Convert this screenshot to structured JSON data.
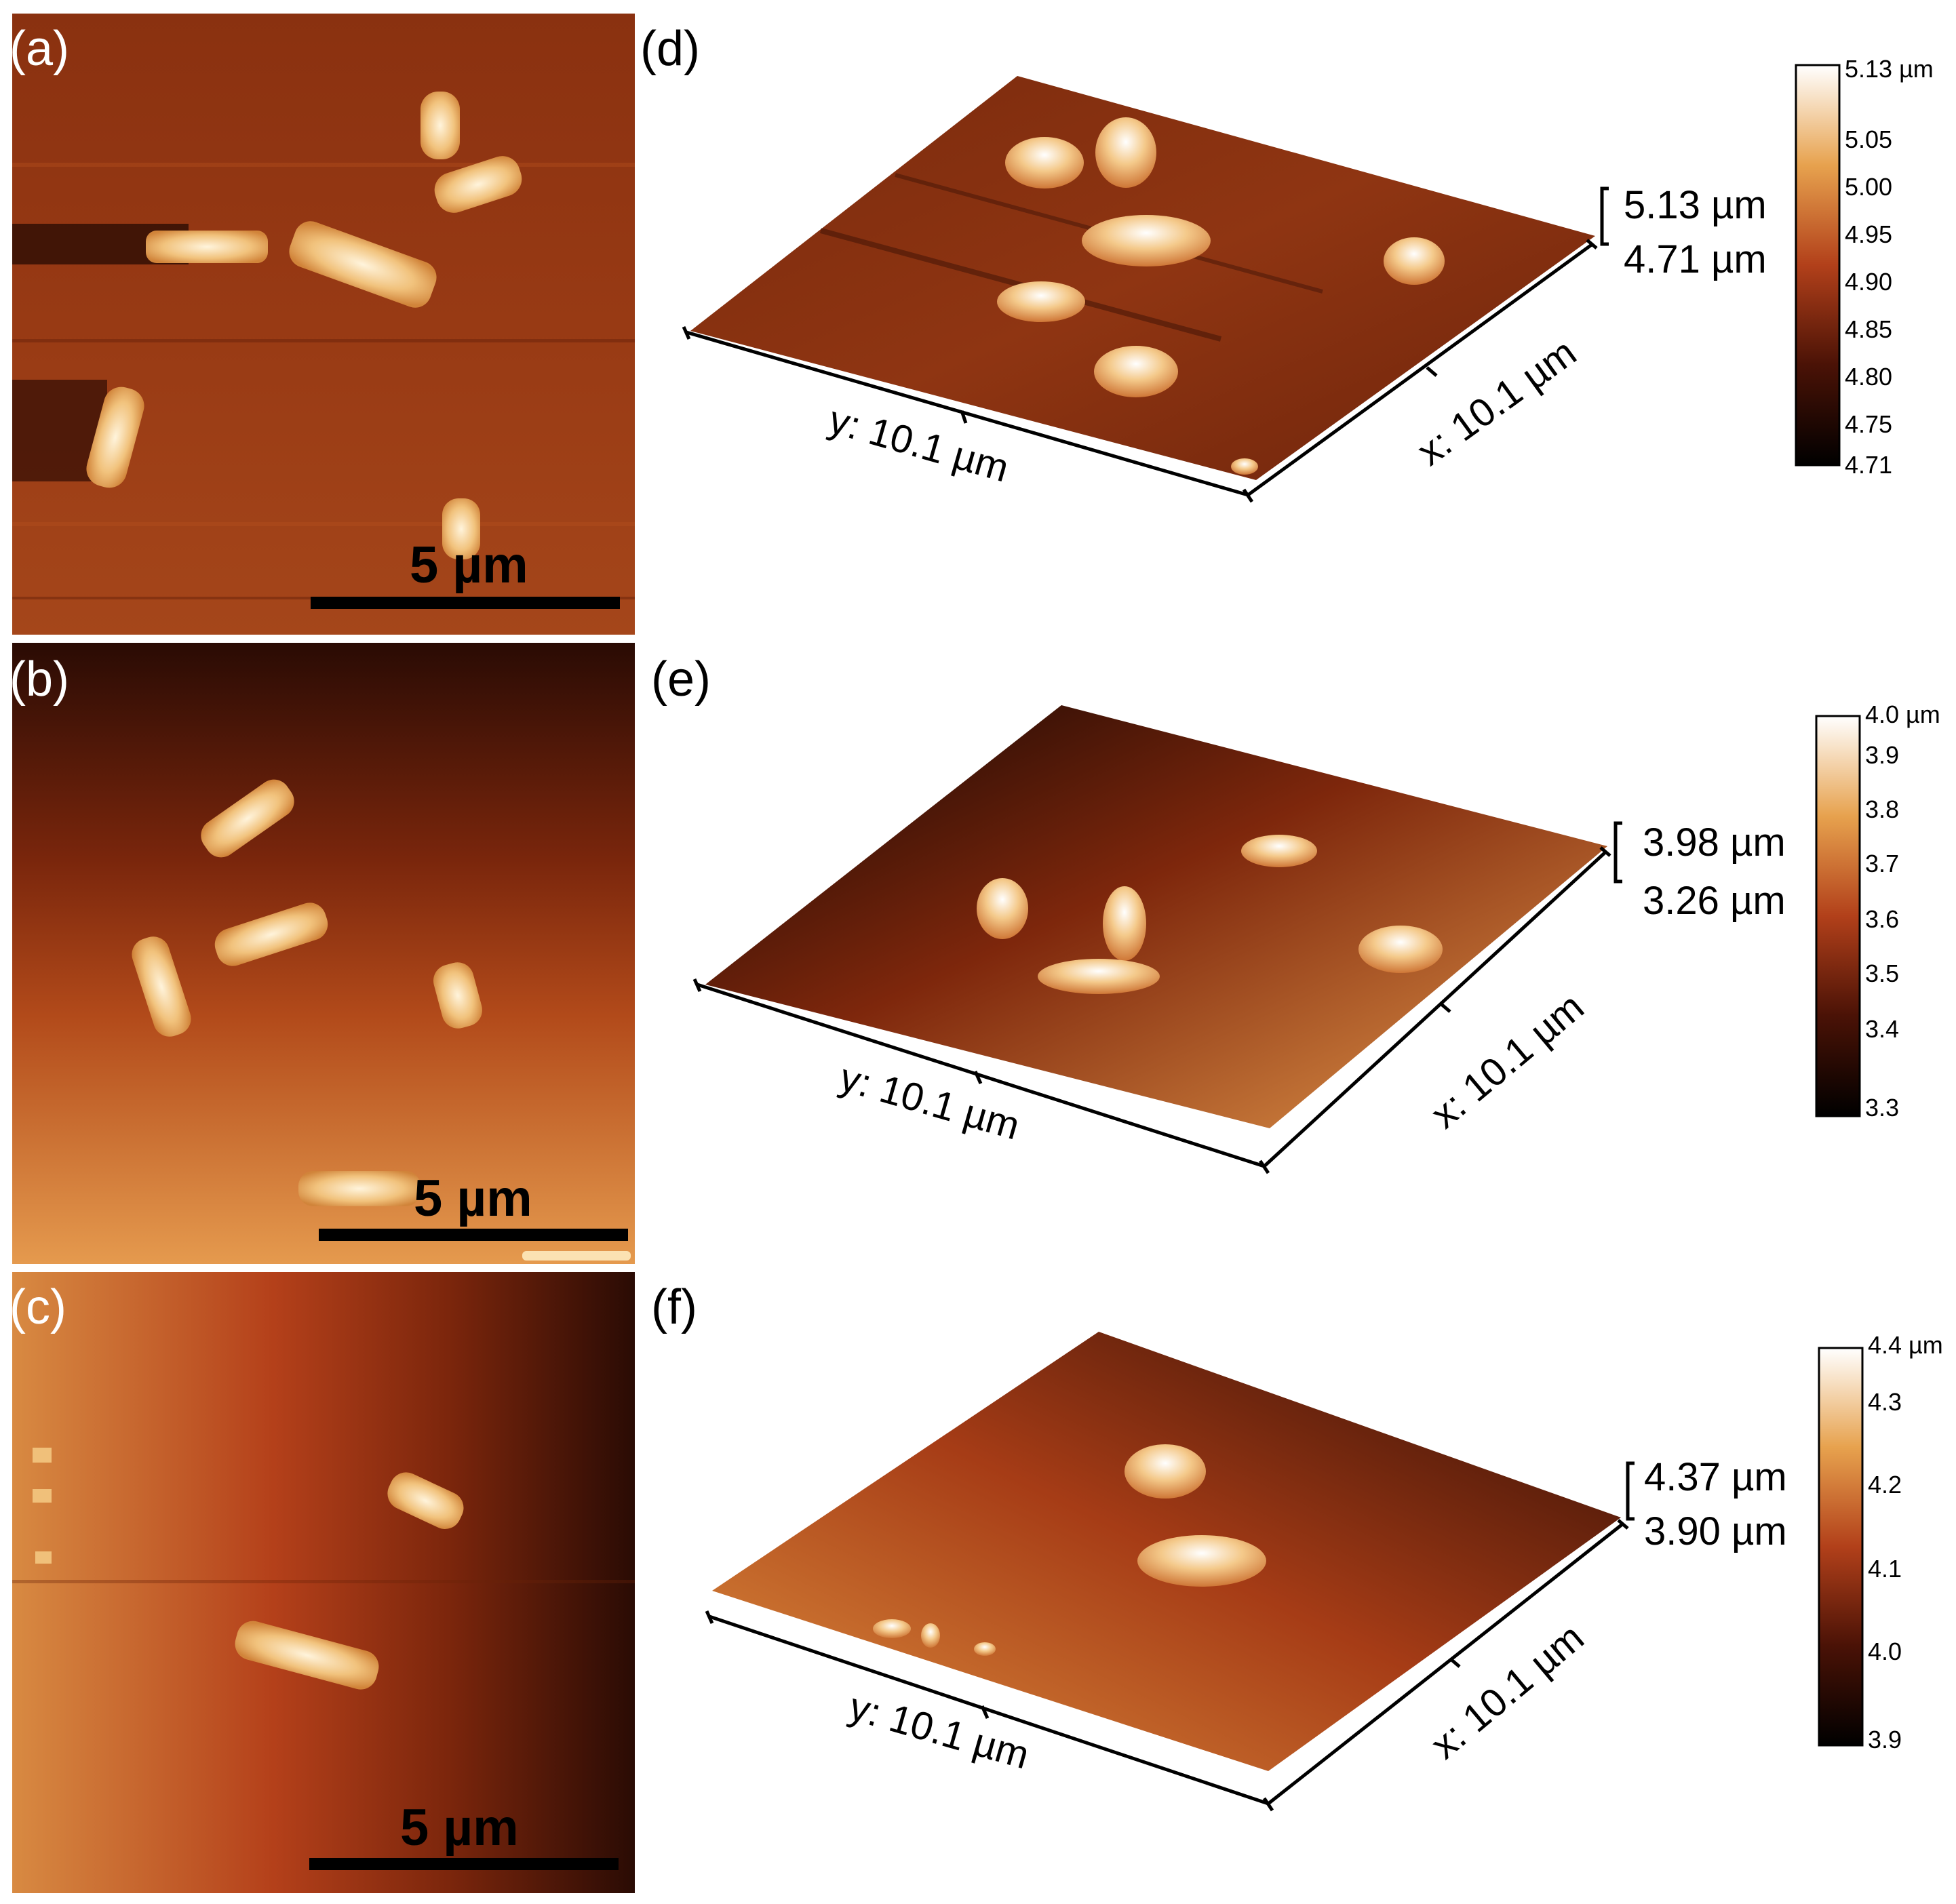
{
  "colors": {
    "afm_low": "#1c0702",
    "afm_mid": "#8c2d12",
    "afm_high": "#fff6e8",
    "afm_bg": "#9a3b14"
  },
  "panels_2d": [
    {
      "label": "(a)",
      "scale": "5 µm"
    },
    {
      "label": "(b)",
      "scale": "5 µm"
    },
    {
      "label": "(c)",
      "scale": "5 µm"
    }
  ],
  "panels_3d": [
    {
      "label": "(d)",
      "range_high": "5.13 µm",
      "range_low": "4.71 µm",
      "y_axis": "y: 10.1 µm",
      "x_axis": "x: 10.1 µm",
      "colorbar_ticks": [
        "5.13 µm",
        "5.05",
        "5.00",
        "4.95",
        "4.90",
        "4.85",
        "4.80",
        "4.75",
        "4.71"
      ]
    },
    {
      "label": "(e)",
      "range_high": "3.98 µm",
      "range_low": "3.26 µm",
      "y_axis": "y: 10.1 µm",
      "x_axis": "x: 10.1 µm",
      "colorbar_ticks": [
        "4.0 µm",
        "3.9",
        "3.8",
        "3.7",
        "3.6",
        "3.5",
        "3.4",
        "3.3"
      ]
    },
    {
      "label": "(f)",
      "range_high": "4.37 µm",
      "range_low": "3.90 µm",
      "y_axis": "y: 10.1 µm",
      "x_axis": "x: 10.1 µm",
      "colorbar_ticks": [
        "4.4 µm",
        "4.3",
        "4.2",
        "4.1",
        "4.0",
        "3.9"
      ]
    }
  ]
}
